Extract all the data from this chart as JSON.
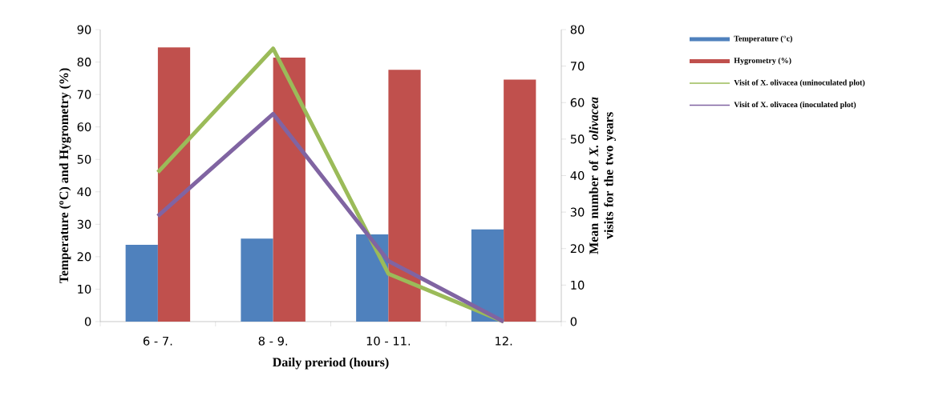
{
  "chart_data": {
    "type": "bar",
    "xlabel": "Daily preriod (hours)",
    "ylabel": "Temperature ($^{o}$C) and Hygrometry (%)",
    "y2label": "Mean number of *X. olivacea* visits for the two years",
    "categories": [
      "6 - 7.",
      "8 - 9.",
      "10 - 11.",
      "12."
    ],
    "series": [
      {
        "name": "Temperature (°c)",
        "color": "#4f81bd",
        "values": [
          23.7,
          25.6,
          26.9,
          28.4
        ]
      },
      {
        "name": "Hygrometry (%)",
        "color": "#c0504d",
        "values": [
          84.5,
          81.4,
          77.6,
          74.6
        ]
      },
      {
        "name": "Visit of X. olivacea (uninoculated plot)",
        "type": "line",
        "axis": "y2",
        "color": "#9bbb59",
        "values": [
          40.9,
          74.8,
          13.1,
          0
        ]
      },
      {
        "name": "Visit of X. olivacea (inoculated plot)",
        "type": "line",
        "axis": "y2",
        "color": "#8064a2",
        "values": [
          28.9,
          56.9,
          16.6,
          0
        ]
      }
    ],
    "ylim": [
      0,
      90
    ],
    "yticks": [
      0,
      10,
      20,
      30,
      40,
      50,
      60,
      70,
      80,
      90
    ],
    "y2lim": [
      0,
      80
    ],
    "y2ticks": [
      0,
      10,
      20,
      30,
      40,
      50,
      60,
      70,
      80
    ],
    "legend": "right",
    "marker": "none",
    "line_style": "solid"
  }
}
